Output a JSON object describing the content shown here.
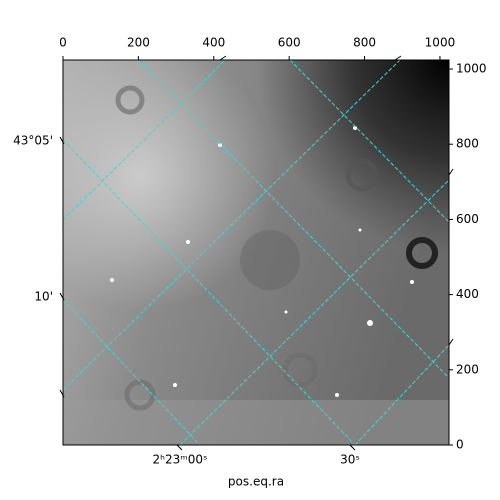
{
  "chart_data": {
    "type": "image",
    "xlabel": "pos.eq.ra",
    "xlim": [
      0,
      1024
    ],
    "xticks": [
      0,
      200,
      400,
      600,
      800,
      1000
    ],
    "ylim": [
      0,
      1024
    ],
    "yticks": [
      0,
      200,
      400,
      600,
      800,
      1000
    ],
    "dec_tick_labels": [
      "43°05'",
      "10'"
    ],
    "ra_tick_labels": [
      "2ʰ23ᵐ00ˢ",
      "30ˢ"
    ]
  }
}
